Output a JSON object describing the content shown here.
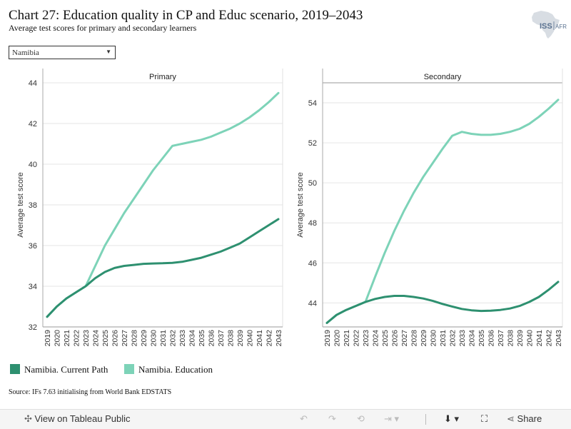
{
  "title": "Chart 27: Education quality in CP and Educ scenario, 2019–2043",
  "subtitle": "Average test scores for primary and secondary learners",
  "logo": {
    "text": "ISS",
    "suffix": "AFRICA"
  },
  "filter": {
    "selected": "Namibia"
  },
  "legend": [
    {
      "label": "Namibia. Current Path",
      "color": "#2e9070"
    },
    {
      "label": "Namibia. Education",
      "color": "#7dd3b8"
    }
  ],
  "source": "Source: IFs 7.63 initialising from World Bank EDSTATS",
  "toolbar": {
    "view_label": "View on Tableau Public",
    "share_label": "Share"
  },
  "icons": {
    "tableau": "tableau-logo-icon",
    "undo": "undo-icon",
    "redo": "redo-icon",
    "revert": "revert-icon",
    "forward": "forward-icon",
    "download": "download-icon",
    "fullscreen": "fullscreen-icon",
    "share": "share-icon"
  },
  "chart_data": [
    {
      "type": "line",
      "panel": "Primary",
      "ylabel": "Average test score",
      "ylim": [
        32,
        44
      ],
      "yticks": [
        32,
        34,
        36,
        38,
        40,
        42,
        44
      ],
      "x": [
        2019,
        2020,
        2021,
        2022,
        2023,
        2024,
        2025,
        2026,
        2027,
        2028,
        2029,
        2030,
        2031,
        2032,
        2033,
        2034,
        2035,
        2036,
        2037,
        2038,
        2039,
        2040,
        2041,
        2042,
        2043
      ],
      "series": [
        {
          "name": "Namibia. Current Path",
          "color": "#2e9070",
          "values": [
            32.5,
            33.0,
            33.4,
            33.7,
            34.0,
            34.4,
            34.7,
            34.9,
            35.0,
            35.05,
            35.1,
            35.12,
            35.13,
            35.15,
            35.2,
            35.3,
            35.4,
            35.55,
            35.7,
            35.9,
            36.1,
            36.4,
            36.7,
            37.0,
            37.3
          ]
        },
        {
          "name": "Namibia. Education",
          "color": "#7dd3b8",
          "values": [
            32.5,
            33.0,
            33.4,
            33.7,
            34.0,
            35.0,
            36.0,
            36.8,
            37.6,
            38.3,
            39.0,
            39.7,
            40.3,
            40.9,
            41.0,
            41.1,
            41.2,
            41.35,
            41.55,
            41.75,
            42.0,
            42.3,
            42.65,
            43.05,
            43.5
          ]
        }
      ]
    },
    {
      "type": "line",
      "panel": "Secondary",
      "ylabel": "Average test score",
      "ylim": [
        42.8,
        55
      ],
      "yticks": [
        44,
        46,
        48,
        50,
        52,
        54
      ],
      "x": [
        2019,
        2020,
        2021,
        2022,
        2023,
        2024,
        2025,
        2026,
        2027,
        2028,
        2029,
        2030,
        2031,
        2032,
        2033,
        2034,
        2035,
        2036,
        2037,
        2038,
        2039,
        2040,
        2041,
        2042,
        2043
      ],
      "series": [
        {
          "name": "Namibia. Current Path",
          "color": "#2e9070",
          "values": [
            43.0,
            43.4,
            43.65,
            43.85,
            44.05,
            44.2,
            44.3,
            44.35,
            44.35,
            44.3,
            44.22,
            44.1,
            43.95,
            43.82,
            43.7,
            43.63,
            43.6,
            43.61,
            43.65,
            43.72,
            43.85,
            44.05,
            44.3,
            44.65,
            45.05
          ]
        },
        {
          "name": "Namibia. Education",
          "color": "#7dd3b8",
          "values": [
            43.0,
            43.4,
            43.65,
            43.85,
            44.05,
            45.3,
            46.5,
            47.6,
            48.6,
            49.5,
            50.3,
            51.0,
            51.7,
            52.35,
            52.55,
            52.45,
            52.4,
            52.4,
            52.45,
            52.55,
            52.7,
            52.95,
            53.3,
            53.7,
            54.15
          ]
        }
      ]
    }
  ]
}
